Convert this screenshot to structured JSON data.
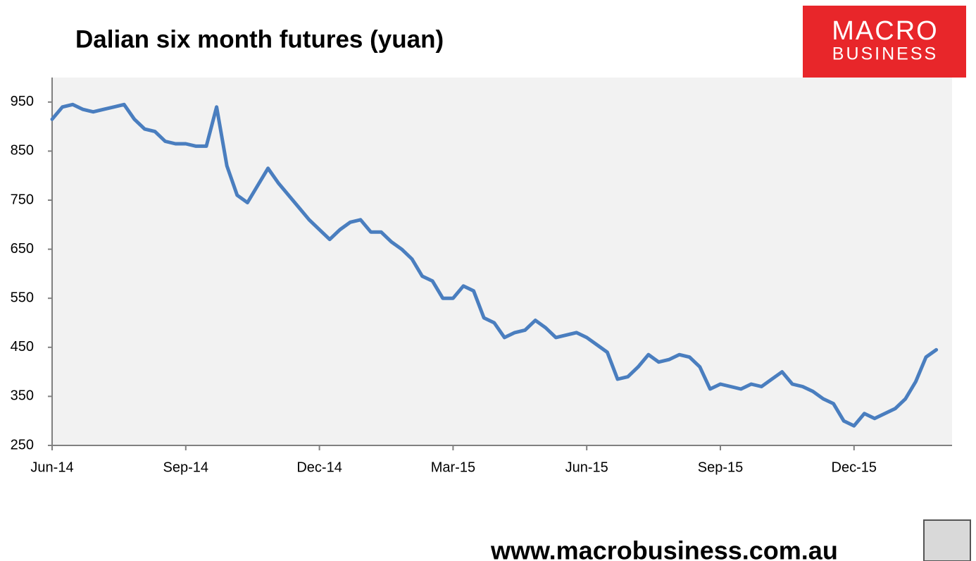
{
  "chart_data": {
    "type": "line",
    "title": "Dalian six month futures (yuan)",
    "logo": {
      "line1": "MACRO",
      "line2": "BUSINESS"
    },
    "footer": "www.macrobusiness.com.au",
    "color": "#4a7ebf",
    "categories": [
      "Jun-14",
      null,
      null,
      null,
      null,
      null,
      null,
      null,
      null,
      null,
      null,
      null,
      null,
      "Sep-14",
      null,
      null,
      null,
      null,
      null,
      null,
      null,
      null,
      null,
      null,
      null,
      null,
      "Dec-14",
      null,
      null,
      null,
      null,
      null,
      null,
      null,
      null,
      null,
      null,
      null,
      null,
      "Mar-15",
      null,
      null,
      null,
      null,
      null,
      null,
      null,
      null,
      null,
      null,
      null,
      null,
      "Jun-15",
      null,
      null,
      null,
      null,
      null,
      null,
      null,
      null,
      null,
      null,
      null,
      null,
      "Sep-15",
      null,
      null,
      null,
      null,
      null,
      null,
      null,
      null,
      null,
      null,
      null,
      null,
      "Dec-15",
      null,
      null,
      null,
      null,
      null,
      null,
      null,
      null
    ],
    "values": [
      915,
      940,
      945,
      935,
      930,
      935,
      940,
      945,
      915,
      895,
      890,
      870,
      865,
      865,
      860,
      860,
      940,
      820,
      760,
      745,
      780,
      815,
      785,
      760,
      735,
      710,
      690,
      670,
      690,
      705,
      710,
      685,
      685,
      665,
      650,
      630,
      595,
      585,
      550,
      550,
      575,
      565,
      510,
      500,
      470,
      480,
      485,
      505,
      490,
      470,
      475,
      480,
      470,
      455,
      440,
      385,
      390,
      410,
      435,
      420,
      425,
      435,
      430,
      410,
      365,
      375,
      370,
      365,
      375,
      370,
      385,
      400,
      375,
      370,
      360,
      345,
      335,
      300,
      290,
      315,
      305,
      315,
      325,
      345,
      380,
      430,
      445
    ],
    "ylim": [
      250,
      1000
    ],
    "yticks": [
      250,
      350,
      450,
      550,
      650,
      750,
      850,
      950
    ]
  }
}
